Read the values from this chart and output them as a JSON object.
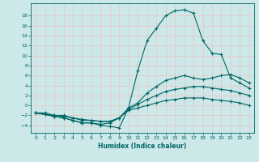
{
  "xlabel": "Humidex (Indice chaleur)",
  "bg_color": "#cce8e8",
  "grid_color": "#e8c8c8",
  "line_color": "#006666",
  "xlim": [
    -0.5,
    23.5
  ],
  "ylim": [
    -5.5,
    20.5
  ],
  "yticks": [
    -4,
    -2,
    0,
    2,
    4,
    6,
    8,
    10,
    12,
    14,
    16,
    18
  ],
  "xticks": [
    0,
    1,
    2,
    3,
    4,
    5,
    6,
    7,
    8,
    9,
    10,
    11,
    12,
    13,
    14,
    15,
    16,
    17,
    18,
    19,
    20,
    21,
    22,
    23
  ],
  "line1_x": [
    0,
    1,
    2,
    3,
    4,
    5,
    6,
    7,
    8,
    9,
    10,
    11,
    12,
    13,
    14,
    15,
    16,
    17,
    18,
    19,
    20,
    21,
    22,
    23
  ],
  "line1_y": [
    -1.5,
    -1.8,
    -2.2,
    -2.5,
    -3.0,
    -3.5,
    -3.5,
    -4.0,
    -4.2,
    -4.5,
    -0.5,
    7.0,
    13.0,
    15.5,
    18.0,
    19.0,
    19.2,
    18.5,
    13.0,
    10.5,
    10.2,
    5.5,
    4.5,
    3.5
  ],
  "line2_x": [
    0,
    1,
    2,
    3,
    4,
    5,
    6,
    7,
    8,
    9,
    10,
    11,
    12,
    13,
    14,
    15,
    16,
    17,
    18,
    19,
    20,
    21,
    22,
    23
  ],
  "line2_y": [
    -1.5,
    -1.8,
    -2.2,
    -2.5,
    -3.0,
    -3.5,
    -3.5,
    -3.8,
    -3.5,
    -2.5,
    -0.5,
    0.5,
    2.5,
    3.8,
    5.0,
    5.5,
    6.0,
    5.5,
    5.2,
    5.5,
    6.0,
    6.2,
    5.5,
    4.5
  ],
  "line3_x": [
    0,
    1,
    2,
    3,
    4,
    5,
    6,
    7,
    8,
    9,
    10,
    11,
    12,
    13,
    14,
    15,
    16,
    17,
    18,
    19,
    20,
    21,
    22,
    23
  ],
  "line3_y": [
    -1.5,
    -1.8,
    -2.0,
    -2.2,
    -2.5,
    -3.0,
    -3.0,
    -3.2,
    -3.2,
    -2.5,
    -0.8,
    0.2,
    1.2,
    2.0,
    2.8,
    3.2,
    3.5,
    3.8,
    3.8,
    3.5,
    3.2,
    3.0,
    2.5,
    2.0
  ],
  "line4_x": [
    0,
    1,
    2,
    3,
    4,
    5,
    6,
    7,
    8,
    9,
    10,
    11,
    12,
    13,
    14,
    15,
    16,
    17,
    18,
    19,
    20,
    21,
    22,
    23
  ],
  "line4_y": [
    -1.5,
    -1.5,
    -2.0,
    -2.0,
    -2.5,
    -2.8,
    -3.0,
    -3.2,
    -3.2,
    -2.5,
    -1.0,
    -0.5,
    0.0,
    0.5,
    1.0,
    1.2,
    1.5,
    1.5,
    1.5,
    1.2,
    1.0,
    0.8,
    0.5,
    0.0
  ]
}
